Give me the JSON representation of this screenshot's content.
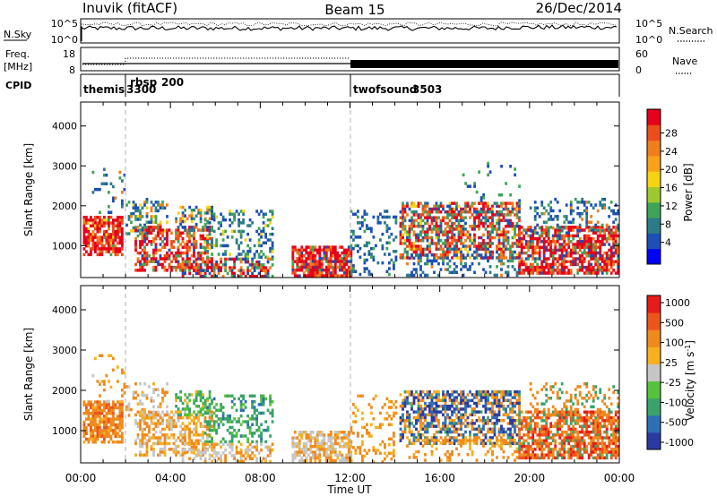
{
  "header": {
    "station": "Inuvik (fitACF)",
    "beam": "Beam 15",
    "date": "26/Dec/2014"
  },
  "top_panels": {
    "nsky": {
      "label": "N.Sky",
      "left_ticks": [
        "10^5",
        "10^0"
      ],
      "right_ticks": [
        "10^5",
        "10^0"
      ],
      "right_label": "N.Search",
      "right_legend_style": "dotted"
    },
    "freq": {
      "label_line1": "Freq.",
      "label_line2": "[MHz]",
      "left_ticks": [
        "18",
        "8"
      ],
      "right_ticks": [
        "60",
        "0"
      ],
      "right_label": "Nave",
      "right_legend_style": "dotted"
    },
    "cpid": {
      "label": "CPID",
      "segments": [
        {
          "name": "themis",
          "id": "3300",
          "start_h": 0.0,
          "end_h": 1.33
        },
        {
          "name": "rbsp",
          "id": "200",
          "start_h": 1.33,
          "end_h": 12.0
        },
        {
          "name": "twofsound",
          "id": "3503",
          "start_h": 12.0,
          "end_h": 24.0
        }
      ]
    }
  },
  "chart_data": [
    {
      "type": "heatmap",
      "title": "",
      "xlabel": "Time UT",
      "ylabel": "Slant Range [km]",
      "xlim_hours": [
        0,
        24
      ],
      "ylim_km": [
        200,
        4600
      ],
      "x_ticks": [
        "00:00",
        "04:00",
        "08:00",
        "12:00",
        "16:00",
        "20:00",
        "00:00"
      ],
      "y_ticks": [
        1000,
        2000,
        3000,
        4000
      ],
      "colorbar": {
        "label": "Power [dB]",
        "ticks": [
          "4",
          "8",
          "12",
          "16",
          "20",
          "24",
          "28"
        ],
        "colors": [
          "#0000ff",
          "#1e4fb4",
          "#2e7b88",
          "#3fa35a",
          "#9ec92e",
          "#f6d313",
          "#f7a21a",
          "#f07e1d",
          "#ec4d1d",
          "#e6001b"
        ]
      },
      "echo_regions_approx": [
        {
          "t": [
            0.0,
            1.9
          ],
          "km": [
            800,
            1800
          ],
          "value": "high power"
        },
        {
          "t": [
            2.0,
            6.0
          ],
          "km": [
            700,
            2000
          ],
          "value": "mixed"
        },
        {
          "t": [
            9.5,
            12.0
          ],
          "km": [
            250,
            1000
          ],
          "value": "high power"
        },
        {
          "t": [
            14.0,
            24.0
          ],
          "km": [
            300,
            2000
          ],
          "value": "mixed"
        }
      ]
    },
    {
      "type": "heatmap",
      "title": "",
      "xlabel": "Time UT",
      "ylabel": "Slant Range [km]",
      "xlim_hours": [
        0,
        24
      ],
      "ylim_km": [
        200,
        4600
      ],
      "x_ticks": [
        "00:00",
        "04:00",
        "08:00",
        "12:00",
        "16:00",
        "20:00",
        "00:00"
      ],
      "y_ticks": [
        1000,
        2000,
        3000,
        4000
      ],
      "colorbar": {
        "label": "Velocity [m s",
        "label_superscript": "-1",
        "label_close": "]",
        "ticks": [
          "1000",
          "500",
          "100",
          "25",
          "-25",
          "-100",
          "-500",
          "-1000"
        ],
        "colors": [
          "#2a3aa0",
          "#2f6fb5",
          "#3aa36b",
          "#57c23d",
          "#c6c6c6",
          "#f6b020",
          "#ef8a1e",
          "#ec561d",
          "#e61b1b"
        ]
      },
      "echo_regions_approx": [
        {
          "t": [
            0.0,
            1.9
          ],
          "km": [
            800,
            1800
          ],
          "value": "negative (orange)"
        },
        {
          "t": [
            5.5,
            8.5
          ],
          "km": [
            700,
            2000
          ],
          "value": "positive (green)"
        },
        {
          "t": [
            15.0,
            18.0
          ],
          "km": [
            800,
            1800
          ],
          "value": "positive (blue)"
        },
        {
          "t": [
            20.0,
            24.0
          ],
          "km": [
            300,
            1200
          ],
          "value": "negative (red)"
        }
      ]
    }
  ]
}
